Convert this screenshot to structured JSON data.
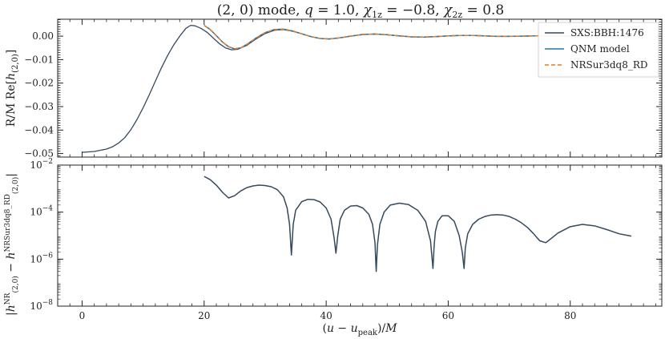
{
  "chart_data": [
    {
      "type": "line",
      "title": "(2, 0) mode, q = 1.0, χ1z = −0.8, χ2z = 0.8",
      "ylabel": "R/M Re[h(2,0)]",
      "xlim": [
        -4,
        95
      ],
      "ylim": [
        -0.0515,
        0.0072
      ],
      "x_ticks": [
        0,
        20,
        40,
        60,
        80
      ],
      "y_ticks": [
        0.0,
        -0.01,
        -0.02,
        -0.03,
        -0.04,
        -0.05
      ],
      "y_tick_labels": [
        "0.00",
        "−0.01",
        "−0.02",
        "−0.03",
        "−0.04",
        "−0.05"
      ],
      "legend_position": "top-right",
      "legend": [
        {
          "label": "SXS:BBH:1476",
          "color": "#34495e",
          "style": "solid"
        },
        {
          "label": "QNM model",
          "color": "#1f77b4",
          "style": "solid"
        },
        {
          "label": "NRSur3dq8_RD",
          "color": "#e67e22",
          "style": "dashed"
        }
      ],
      "series": [
        {
          "name": "SXS:BBH:1476",
          "color": "#34495e",
          "style": "solid",
          "x": [
            0,
            2,
            4,
            5,
            6,
            7,
            8,
            9,
            10,
            11,
            12,
            13,
            14,
            15,
            16,
            17,
            17.8,
            18.5,
            19.5,
            20.5,
            21.5,
            22.5,
            23.5,
            24.5,
            25.5,
            27,
            28.5,
            30,
            31.5,
            33,
            34.5,
            36,
            37.5,
            39,
            40.5,
            42,
            44,
            46,
            48,
            50,
            52,
            54,
            56,
            58,
            60,
            62,
            64,
            66,
            68,
            70,
            72,
            74,
            76,
            78,
            80,
            84,
            88,
            90
          ],
          "y": [
            -0.0495,
            -0.0491,
            -0.0481,
            -0.0471,
            -0.0455,
            -0.0432,
            -0.0398,
            -0.0355,
            -0.0305,
            -0.025,
            -0.0192,
            -0.0135,
            -0.0083,
            -0.0038,
            0.0,
            0.0033,
            0.0046,
            0.0044,
            0.0033,
            0.0016,
            -0.0008,
            -0.0032,
            -0.005,
            -0.0058,
            -0.0056,
            -0.0039,
            -0.0012,
            0.0011,
            0.0025,
            0.0028,
            0.0021,
            0.001,
            -0.0002,
            -0.001,
            -0.0012,
            -0.0008,
            0.0,
            0.0007,
            0.0009,
            0.0006,
            0.0001,
            -0.0003,
            -0.0004,
            -0.0002,
            0.0001,
            0.0003,
            0.0003,
            0.0001,
            -0.0001,
            -0.0001,
            0.0,
            0.0001,
            0.0001,
            0.0,
            0.0,
            0.0,
            0.0,
            0.0
          ]
        },
        {
          "name": "QNM model",
          "color": "#1f77b4",
          "style": "solid",
          "x": [
            20,
            21,
            22,
            23,
            24,
            25,
            26,
            27,
            28.5,
            30,
            31.5,
            33,
            34.5,
            36,
            37.5,
            39,
            40.5,
            42,
            44,
            46,
            48,
            50,
            52,
            54,
            56,
            58,
            60,
            62,
            64,
            66,
            68,
            70,
            72,
            74,
            76,
            78,
            80,
            84,
            88,
            90
          ],
          "y": [
            0.0046,
            0.0028,
            0.0002,
            -0.0025,
            -0.0045,
            -0.0054,
            -0.005,
            -0.0035,
            -0.0008,
            0.0015,
            0.0028,
            0.003,
            0.0022,
            0.001,
            -0.0002,
            -0.001,
            -0.0012,
            -0.0008,
            0.0,
            0.0007,
            0.0009,
            0.0006,
            0.0001,
            -0.0003,
            -0.0004,
            -0.0002,
            0.0001,
            0.0003,
            0.0003,
            0.0001,
            -0.0001,
            -0.0001,
            0.0,
            0.0001,
            0.0001,
            0.0,
            0.0,
            0.0,
            0.0,
            0.0
          ]
        },
        {
          "name": "NRSur3dq8_RD",
          "color": "#e67e22",
          "style": "dashed",
          "x": [
            20,
            21,
            22,
            23,
            24,
            25,
            26,
            27,
            28.5,
            30,
            31.5,
            33,
            34.5,
            36,
            37.5,
            39,
            40.5,
            42,
            44,
            46,
            48,
            50,
            52,
            54,
            56,
            58,
            60,
            62,
            64,
            66,
            68,
            70,
            72,
            74,
            76,
            78,
            80,
            84,
            88,
            90
          ],
          "y": [
            0.0046,
            0.0028,
            0.0002,
            -0.0025,
            -0.0045,
            -0.0054,
            -0.005,
            -0.0035,
            -0.0008,
            0.0015,
            0.0028,
            0.003,
            0.0022,
            0.001,
            -0.0002,
            -0.001,
            -0.0012,
            -0.0008,
            0.0,
            0.0007,
            0.0009,
            0.0006,
            0.0001,
            -0.0003,
            -0.0004,
            -0.0002,
            0.0001,
            0.0003,
            0.0003,
            0.0001,
            -0.0001,
            -0.0001,
            0.0,
            0.0001,
            0.0001,
            0.0,
            0.0,
            0.0,
            0.0,
            0.0
          ]
        }
      ]
    },
    {
      "type": "line",
      "xlabel": "(u − u_peak)/M",
      "ylabel": "|h^NR(2,0) − h^NRSur3dq8_RD(2,0)|",
      "yscale": "log",
      "xlim": [
        -4,
        95
      ],
      "ylim": [
        1e-08,
        0.01
      ],
      "x_ticks": [
        0,
        20,
        40,
        60,
        80
      ],
      "x_tick_labels": [
        "0",
        "20",
        "40",
        "60",
        "80"
      ],
      "y_ticks": [
        1e-08,
        1e-06,
        0.0001,
        0.01
      ],
      "y_tick_labels": [
        "10−8",
        "10−6",
        "10−4",
        "10−2"
      ],
      "series": [
        {
          "color": "#34495e",
          "style": "solid",
          "x": [
            20,
            21,
            22,
            23,
            24,
            25,
            26,
            27,
            28,
            29,
            30,
            31,
            32,
            33,
            33.6,
            34.0,
            34.3,
            34.6,
            35,
            36,
            37,
            38,
            39,
            40,
            40.8,
            41.3,
            41.6,
            41.9,
            42.3,
            43,
            44,
            45,
            46,
            47,
            47.6,
            48.0,
            48.2,
            48.4,
            48.8,
            49.5,
            50.5,
            52,
            53.5,
            55,
            56.3,
            57.1,
            57.5,
            57.7,
            57.9,
            58.3,
            59,
            60,
            61,
            61.8,
            62.3,
            62.6,
            62.8,
            63.2,
            64,
            65,
            66,
            67,
            68,
            69,
            70,
            71,
            72,
            73,
            74,
            75,
            76,
            77,
            78,
            80,
            82,
            84,
            86,
            88,
            90
          ],
          "y": [
            0.0033,
            0.0024,
            0.0014,
            0.0007,
            0.0004,
            0.0005,
            0.0008,
            0.0011,
            0.0013,
            0.0014,
            0.00135,
            0.0012,
            0.0009,
            0.00045,
            0.00015,
            3e-05,
            1.5e-06,
            3e-05,
            0.00012,
            0.00028,
            0.00035,
            0.00034,
            0.00027,
            0.00015,
            5e-05,
            8e-06,
            1.8e-06,
            1e-05,
            5e-05,
            0.00012,
            0.00018,
            0.00019,
            0.00015,
            8e-05,
            3e-05,
            5e-06,
            3e-07,
            4e-06,
            3e-05,
            0.0001,
            0.0002,
            0.00024,
            0.00021,
            0.00012,
            4e-05,
            6e-06,
            4e-07,
            4e-06,
            1.5e-05,
            4e-05,
            7e-05,
            7e-05,
            4e-05,
            1e-05,
            2e-06,
            4e-07,
            3e-06,
            1.2e-05,
            3e-05,
            5e-05,
            6.5e-05,
            7.5e-05,
            7.8e-05,
            7.5e-05,
            6.5e-05,
            5e-05,
            3.5e-05,
            2.2e-05,
            1.2e-05,
            6e-06,
            5e-06,
            8e-06,
            1.3e-05,
            2.4e-05,
            3e-05,
            2.6e-05,
            1.8e-05,
            1.2e-05,
            9.5e-06
          ]
        }
      ]
    }
  ]
}
